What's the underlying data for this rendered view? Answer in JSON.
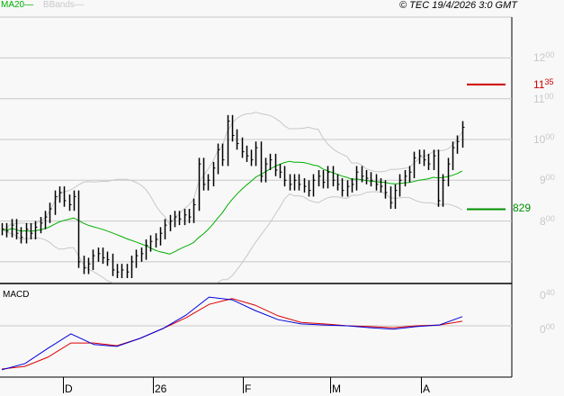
{
  "header": {
    "ma_legend": "MA20",
    "bb_legend": "BBands",
    "copyright": "© TEC 19/4/2026 3:0 GMT"
  },
  "colors": {
    "ma20": "#00b000",
    "bbands": "#c8c8c8",
    "bars": "#000000",
    "macd": "#0000dd",
    "signal": "#dd0000",
    "resistance": "#cc0000",
    "support": "#009000"
  },
  "price_axis": {
    "labels": [
      {
        "int": "12",
        "dec": "00",
        "value": 12
      },
      {
        "int": "11",
        "dec": "00",
        "value": 11
      },
      {
        "int": "10",
        "dec": "00",
        "value": 10
      },
      {
        "int": "9",
        "dec": "00",
        "value": 9
      },
      {
        "int": "8",
        "dec": "00",
        "value": 8
      }
    ]
  },
  "levels": {
    "resistance": {
      "int": "11",
      "dec": "35",
      "value": 11.35
    },
    "support": {
      "label": "829",
      "value": 8.29
    }
  },
  "macd_panel": {
    "title": "MACD",
    "labels": [
      {
        "int": "0",
        "dec": "40",
        "value": 0.4
      },
      {
        "int": "0",
        "dec": "00",
        "value": 0
      }
    ]
  },
  "x_axis": {
    "labels": [
      "D",
      "26",
      "F",
      "M",
      "A"
    ]
  },
  "chart_data": {
    "type": "ohlc",
    "indicators": [
      "MA20",
      "BBands",
      "MACD"
    ],
    "close": [
      7.8,
      7.75,
      7.9,
      7.7,
      7.6,
      7.8,
      7.7,
      7.85,
      7.95,
      8.1,
      8.3,
      8.6,
      8.7,
      8.5,
      8.4,
      8.6,
      7.0,
      6.85,
      6.95,
      7.15,
      7.2,
      7.1,
      7.05,
      6.8,
      6.75,
      6.8,
      6.75,
      7.0,
      7.15,
      7.2,
      7.4,
      7.5,
      7.55,
      7.7,
      7.9,
      8.0,
      8.1,
      8.05,
      8.15,
      8.1,
      8.4,
      9.4,
      8.9,
      9.0,
      9.3,
      9.75,
      9.5,
      10.45,
      10.1,
      9.9,
      9.7,
      9.6,
      9.5,
      9.8,
      9.1,
      9.4,
      9.5,
      9.25,
      9.2,
      9.0,
      8.9,
      9.0,
      8.9,
      8.85,
      8.75,
      9.0,
      9.1,
      8.95,
      9.2,
      9.0,
      8.9,
      8.75,
      8.85,
      8.9,
      9.2,
      9.1,
      9.05,
      9.0,
      8.9,
      8.85,
      8.7,
      8.45,
      8.75,
      9.0,
      9.1,
      9.2,
      9.55,
      9.6,
      9.5,
      9.4,
      9.6,
      8.5,
      9.0,
      9.4,
      9.8,
      9.95,
      10.3
    ],
    "macd": [
      -1.15,
      -0.99,
      -0.59,
      -0.21,
      -0.49,
      -0.54,
      -0.33,
      -0.07,
      0.28,
      0.75,
      0.68,
      0.4,
      0.16,
      0.05,
      0.02,
      0,
      -0.05,
      -0.09,
      -0.02,
      0.02,
      0.24
    ],
    "signal": [
      -1.13,
      -1.06,
      -0.82,
      -0.45,
      -0.45,
      -0.52,
      -0.33,
      -0.07,
      0.21,
      0.56,
      0.71,
      0.54,
      0.26,
      0.09,
      0.05,
      0,
      -0.02,
      -0.05,
      0,
      0.02,
      0.12
    ],
    "y_range": [
      6.6,
      13.0
    ],
    "grid": true
  }
}
